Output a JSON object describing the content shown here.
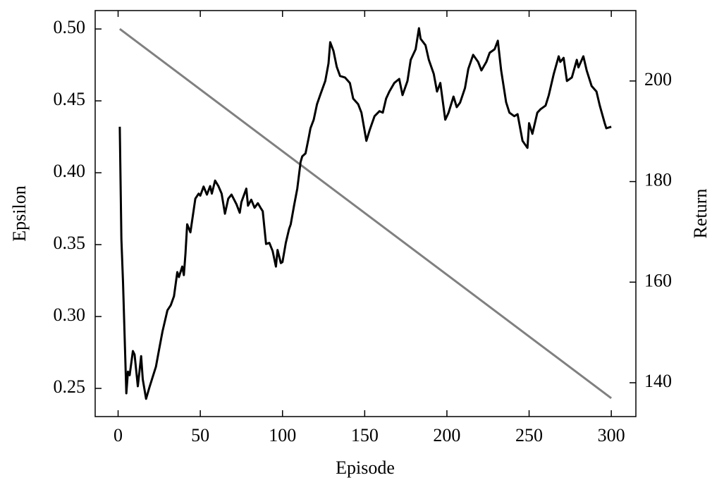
{
  "chart_data": {
    "type": "line",
    "xlabel": "Episode",
    "ylabel": "Epsilon",
    "y2label": "Return",
    "xlim": [
      -13.95,
      314.95
    ],
    "xticks": [
      0,
      50,
      100,
      150,
      200,
      250,
      300
    ],
    "ylim": [
      0.2304,
      0.5128
    ],
    "yticks": [
      0.25,
      {
        "value": 0.3,
        "label": "0.30"
      },
      0.35,
      {
        "value": 0.4,
        "label": "0.40"
      },
      0.45,
      {
        "value": 0.5,
        "label": "0.50"
      }
    ],
    "y2lim": [
      133.27,
      214.0
    ],
    "y2ticks": [
      140,
      160,
      180,
      200
    ],
    "series": [
      {
        "color": "#808080",
        "axis": "y",
        "x": [
          1,
          300
        ],
        "values": [
          0.5,
          0.2432
        ]
      },
      {
        "color": "#000000",
        "axis": "y2",
        "x": [
          1,
          2,
          3,
          5,
          6,
          7,
          9,
          10,
          12,
          14,
          15,
          17,
          19,
          21,
          23,
          25,
          27,
          30,
          32,
          34,
          36,
          37,
          39,
          40,
          41,
          42,
          44,
          45,
          47,
          49,
          50,
          52,
          54,
          56,
          57,
          59,
          61,
          63,
          65,
          67,
          69,
          72,
          74,
          75,
          78,
          79,
          81,
          83,
          85,
          87,
          88,
          90,
          92,
          94,
          96,
          97,
          99,
          100,
          102,
          104,
          105,
          107,
          109,
          111,
          112,
          114,
          116,
          117,
          119,
          121,
          123,
          126,
          128,
          129,
          131,
          133,
          135,
          138,
          141,
          143,
          146,
          148,
          151,
          153,
          156,
          159,
          161,
          163,
          165,
          168,
          171,
          173,
          176,
          178,
          181,
          183,
          184,
          187,
          189,
          192,
          194,
          196,
          199,
          201,
          204,
          206,
          208,
          211,
          213,
          216,
          219,
          221,
          224,
          226,
          229,
          231,
          233,
          236,
          238,
          241,
          243,
          246,
          249,
          250,
          252,
          255,
          257,
          260,
          262,
          265,
          268,
          269,
          271,
          273,
          276,
          279,
          280,
          283,
          285,
          288,
          291,
          293,
          296,
          297,
          300
        ],
        "values": [
          190.9,
          168.5,
          160.0,
          137.9,
          142.2,
          141.5,
          146.3,
          145.6,
          139.3,
          145.3,
          140.7,
          136.8,
          139.0,
          141.1,
          143.2,
          146.7,
          150.2,
          154.4,
          155.4,
          157.2,
          162.0,
          161.0,
          163.1,
          161.4,
          165.7,
          171.5,
          169.9,
          172.2,
          176.6,
          177.6,
          177.2,
          179.0,
          177.4,
          179.1,
          177.6,
          180.2,
          179.1,
          177.6,
          173.6,
          176.6,
          177.4,
          175.5,
          173.8,
          175.9,
          178.6,
          175.2,
          176.4,
          174.8,
          175.7,
          174.6,
          174.1,
          167.6,
          167.8,
          166.2,
          163.1,
          166.4,
          163.8,
          164.0,
          167.8,
          170.6,
          171.5,
          175.2,
          178.6,
          183.9,
          185.0,
          185.6,
          188.8,
          190.6,
          192.3,
          195.4,
          197.3,
          200.0,
          203.5,
          207.7,
          206.0,
          202.8,
          201.0,
          200.7,
          199.6,
          196.5,
          195.4,
          193.7,
          188.1,
          190.2,
          193.0,
          194.0,
          193.7,
          196.5,
          197.9,
          199.6,
          200.4,
          197.2,
          200.0,
          204.2,
          206.3,
          210.5,
          208.4,
          207.1,
          204.2,
          201.4,
          197.9,
          199.6,
          192.3,
          193.7,
          196.9,
          194.8,
          195.7,
          198.6,
          202.4,
          205.2,
          203.8,
          202.1,
          203.8,
          205.6,
          206.3,
          208.0,
          202.1,
          195.8,
          193.7,
          193.0,
          193.4,
          188.1,
          186.7,
          191.6,
          189.5,
          193.7,
          194.4,
          195.1,
          197.2,
          201.4,
          204.9,
          203.8,
          204.6,
          200.0,
          200.7,
          204.2,
          202.7,
          204.9,
          202.1,
          199.0,
          197.9,
          195.1,
          191.6,
          190.6,
          190.9
        ]
      }
    ]
  }
}
